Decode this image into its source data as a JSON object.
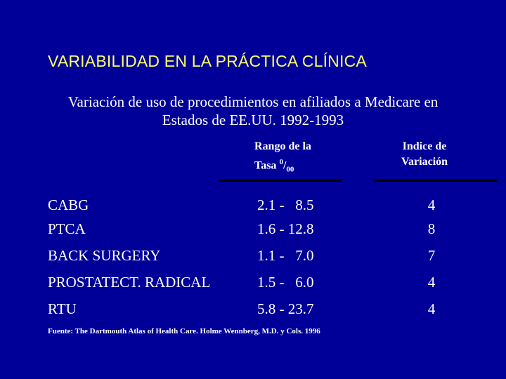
{
  "slide": {
    "title": "VARIABILIDAD EN LA PRÁCTICA CLÍNICA",
    "subtitle_line1": "Variación de uso de procedimientos en afiliados a Medicare en",
    "subtitle_line2": "Estados de EE.UU. 1992-1993"
  },
  "table": {
    "headers": {
      "rango_line1": "Rango de la",
      "rango_line2_prefix": "Tasa ",
      "rango_sup": "0",
      "rango_slash": "/",
      "rango_sub": "00",
      "indice_line1": "Indice  de",
      "indice_line2": "Variación"
    },
    "rows": [
      {
        "name": "CABG",
        "range": "2.1 -   8.5",
        "index": "4"
      },
      {
        "name": "PTCA",
        "range": "1.6 - 12.8",
        "index": "8"
      },
      {
        "name": "BACK SURGERY",
        "range": "1.1 -   7.0",
        "index": "7"
      },
      {
        "name": "PROSTATECT. RADICAL",
        "range": "1.5 -   6.0",
        "index": "4"
      },
      {
        "name": "RTU",
        "range": "5.8 - 23.7",
        "index": "4"
      }
    ]
  },
  "source": "Fuente: The Dartmouth Atlas of  Health Care. Holme Wennberg, M.D. y Cols. 1996",
  "colors": {
    "background": "#000099",
    "title": "#ffff66",
    "text": "#ffffff",
    "rule": "#000000"
  }
}
